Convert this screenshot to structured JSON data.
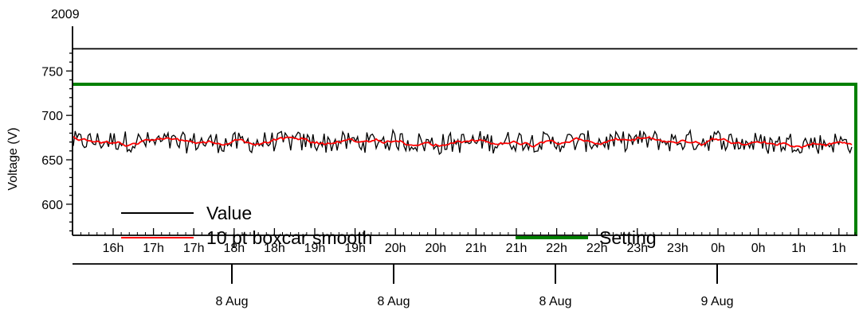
{
  "chart_data": {
    "type": "line",
    "year_label": "2009",
    "ylabel": "Voltage (V)",
    "ylim": [
      565,
      778
    ],
    "yticks": [
      600,
      650,
      700,
      750
    ],
    "ytick_labels": [
      "600",
      "650",
      "700",
      "750"
    ],
    "x_tick_labels": [
      "16h",
      "17h",
      "17h",
      "18h",
      "18h",
      "19h",
      "19h",
      "20h",
      "20h",
      "21h",
      "21h",
      "22h",
      "22h",
      "23h",
      "23h",
      "0h",
      "0h",
      "1h",
      "1h"
    ],
    "date_labels": [
      "8 Aug",
      "8 Aug",
      "8 Aug",
      "9 Aug"
    ],
    "grid": false,
    "legend_placement": "bottom",
    "series": [
      {
        "name": "Value",
        "color": "#000000",
        "style": "noisy",
        "mean": 670,
        "noise_amplitude": 12
      },
      {
        "name": "10 pt boxcar smooth",
        "color": "#ff0000",
        "style": "smoothed",
        "mean": 670
      },
      {
        "name": "Setting",
        "color": "#008000",
        "style": "constant",
        "value": 735,
        "final_drop_to": 565
      }
    ],
    "reference_line": {
      "value": 775,
      "color": "#000000"
    }
  }
}
